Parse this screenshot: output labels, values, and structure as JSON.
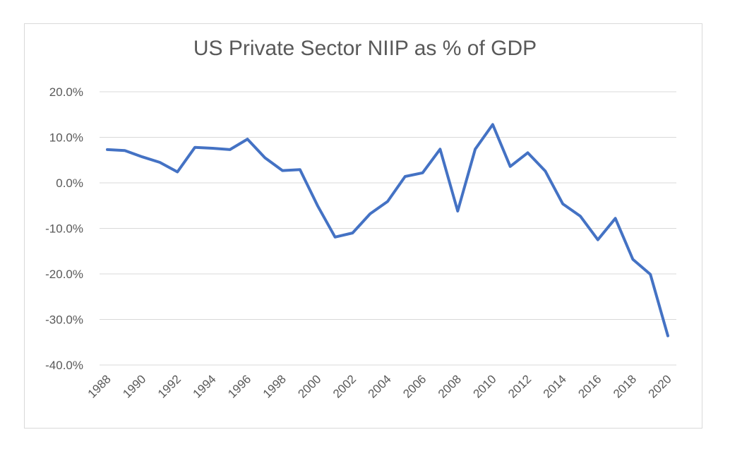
{
  "chart_data": {
    "type": "line",
    "title": "US Private Sector NIIP as % of GDP",
    "xlabel": "",
    "ylabel": "",
    "ylim": [
      -40,
      20
    ],
    "yticks": [
      20,
      10,
      0,
      -10,
      -20,
      -30,
      -40
    ],
    "ytick_labels": [
      "20.0%",
      "10.0%",
      "0.0%",
      "-10.0%",
      "-20.0%",
      "-30.0%",
      "-40.0%"
    ],
    "xtick_labels": [
      "1988",
      "1990",
      "1992",
      "1994",
      "1996",
      "1998",
      "2000",
      "2002",
      "2004",
      "2006",
      "2008",
      "2010",
      "2012",
      "2014",
      "2016",
      "2018",
      "2020"
    ],
    "grid": true,
    "legend": "none",
    "line_color": "#4472c4",
    "series": [
      {
        "x": [
          1988,
          1989,
          1990,
          1991,
          1992,
          1993,
          1994,
          1995,
          1996,
          1997,
          1998,
          1999,
          2000,
          2001,
          2002,
          2003,
          2004,
          2005,
          2006,
          2007,
          2008,
          2009,
          2010,
          2011,
          2012,
          2013,
          2014,
          2015,
          2016,
          2017,
          2018,
          2019,
          2020
        ],
        "values": [
          7.3,
          7.1,
          5.7,
          4.5,
          2.4,
          7.8,
          7.6,
          7.3,
          9.6,
          5.5,
          2.7,
          2.9,
          -5.0,
          -11.9,
          -11.0,
          -6.8,
          -4.1,
          1.4,
          2.2,
          7.4,
          -6.2,
          7.4,
          12.8,
          3.6,
          6.6,
          2.6,
          -4.6,
          -7.3,
          -12.5,
          -7.8,
          -16.8,
          -20.1,
          -33.6
        ]
      }
    ]
  }
}
